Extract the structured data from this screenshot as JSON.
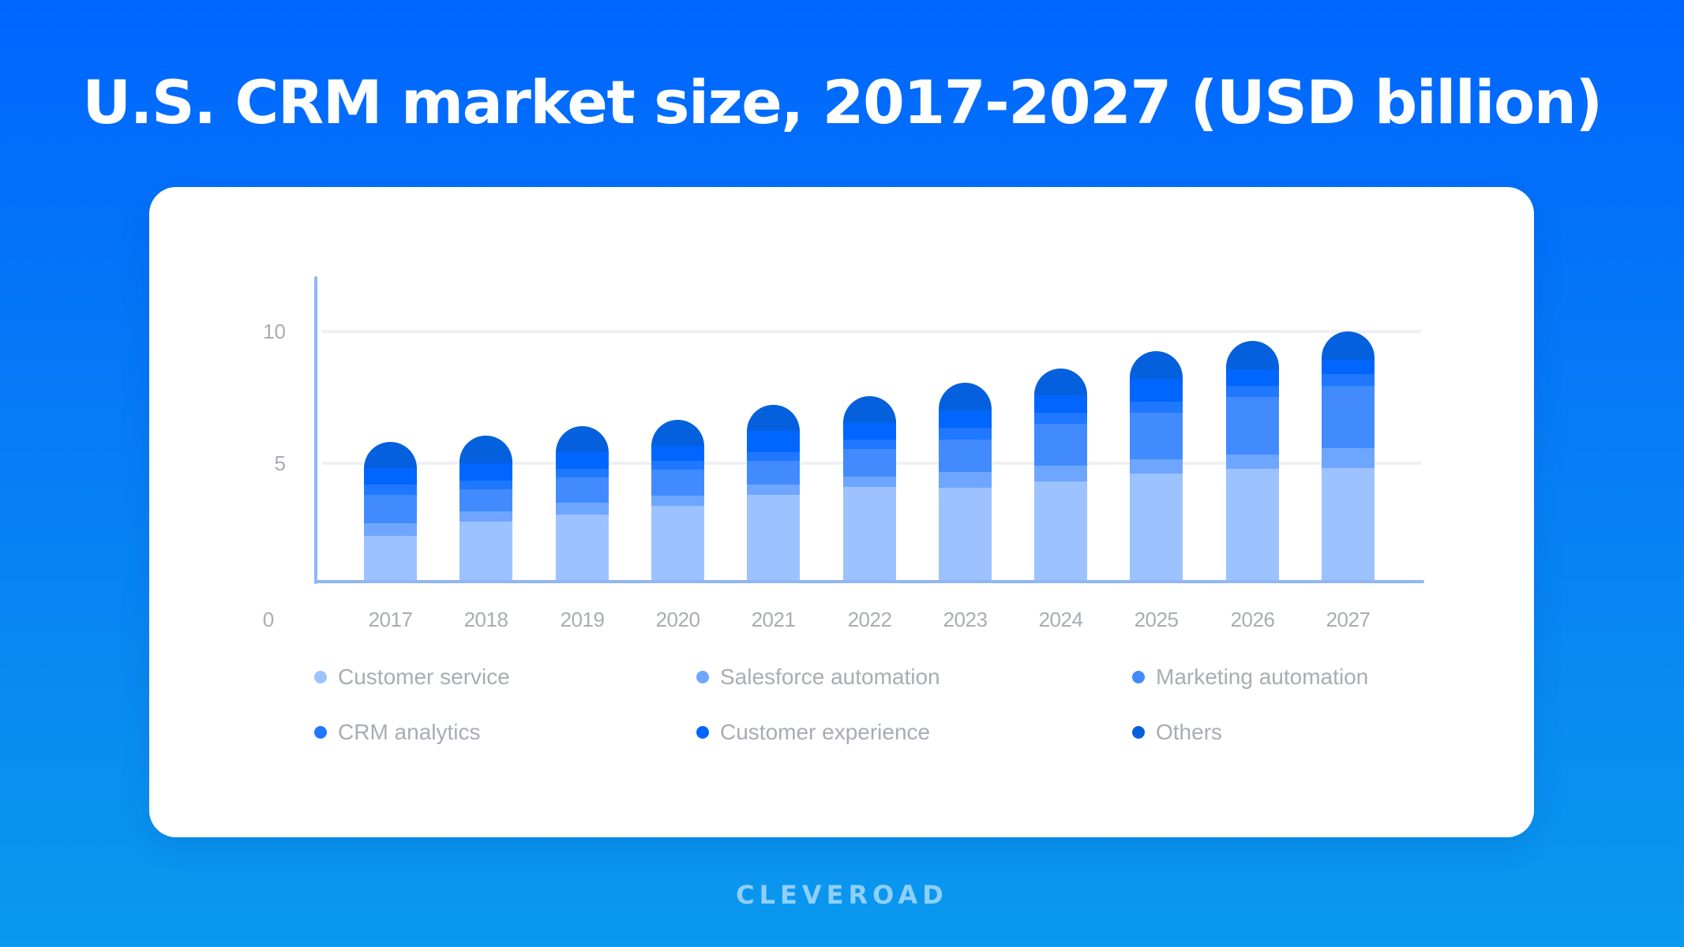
{
  "title": "U.S. CRM market size, 2017-2027 (USD billion)",
  "brand": "CLEVEROAD",
  "colors": {
    "background_top": "#0066ff",
    "background_bottom": "#0a99ee",
    "card": "#ffffff",
    "axis": "#8fb6f3",
    "gridline": "#eef0f3",
    "label_text": "#a9acb3",
    "brand_text": "#8fd0fb"
  },
  "chart_data": {
    "type": "bar",
    "stacked": true,
    "title": "U.S. CRM market size, 2017-2027 (USD billion)",
    "xlabel": "",
    "ylabel": "",
    "ylim": [
      0,
      12
    ],
    "yticks": [
      0,
      5,
      10
    ],
    "grid": true,
    "legend_position": "bottom",
    "categories": [
      "2017",
      "2018",
      "2019",
      "2020",
      "2021",
      "2022",
      "2023",
      "2024",
      "2025",
      "2026",
      "2027"
    ],
    "series": [
      {
        "name": "Customer service",
        "color": "#9cc2ff",
        "values": [
          2.22,
          2.76,
          3.03,
          3.36,
          3.78,
          4.08,
          4.05,
          4.29,
          4.59,
          4.77,
          4.8
        ]
      },
      {
        "name": "Salesforce automation",
        "color": "#6ea6ff",
        "values": [
          0.48,
          0.39,
          0.45,
          0.39,
          0.39,
          0.39,
          0.6,
          0.6,
          0.54,
          0.54,
          0.75
        ]
      },
      {
        "name": "Marketing automation",
        "color": "#418bff",
        "values": [
          1.08,
          0.84,
          0.96,
          0.99,
          0.9,
          1.05,
          1.23,
          1.59,
          1.77,
          2.19,
          2.37
        ]
      },
      {
        "name": "CRM analytics",
        "color": "#1f78ff",
        "values": [
          0.39,
          0.33,
          0.33,
          0.33,
          0.33,
          0.36,
          0.45,
          0.42,
          0.42,
          0.42,
          0.45
        ]
      },
      {
        "name": "Customer experience",
        "color": "#0066ff",
        "values": [
          0.63,
          0.66,
          0.63,
          0.57,
          0.81,
          0.63,
          0.66,
          0.66,
          0.87,
          0.63,
          0.54
        ]
      },
      {
        "name": "Others",
        "color": "#0560dd",
        "values": [
          0.99,
          1.05,
          0.99,
          0.99,
          0.99,
          1.02,
          1.05,
          1.02,
          1.05,
          1.08,
          1.08
        ]
      }
    ],
    "totals": [
      5.79,
      6.03,
      6.39,
      6.63,
      7.2,
      7.53,
      8.04,
      8.58,
      9.24,
      9.63,
      9.99
    ]
  },
  "axis": {
    "y_labels": [
      "10",
      "5",
      "0"
    ]
  }
}
